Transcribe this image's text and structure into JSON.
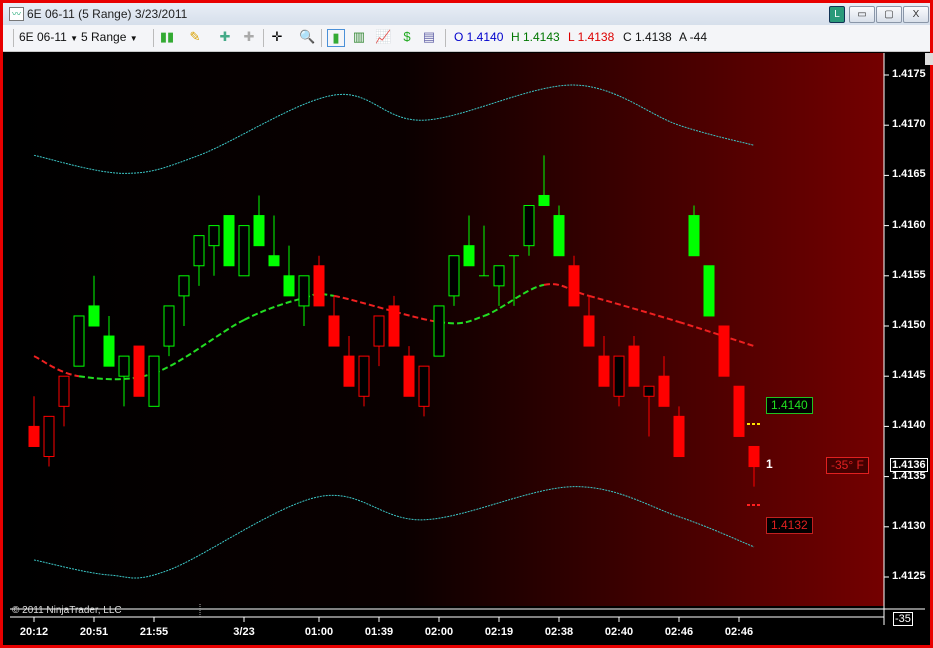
{
  "window": {
    "title": "6E 06-11 (5 Range)  3/23/2011",
    "btn_link": "L",
    "btn_min": "▭",
    "btn_max": "▢",
    "btn_close": "X"
  },
  "toolbar": {
    "instrument": "6E 06-11",
    "period": "5 Range",
    "ohlc": {
      "open": "O 1.4140",
      "high": "H 1.4143",
      "low": "L 1.4138",
      "close": "C 1.4138",
      "avg": "A -44"
    },
    "colors": {
      "open": "#0000cc",
      "high": "#007700",
      "low": "#dd0000",
      "close": "#111111"
    }
  },
  "chart": {
    "copyright": "© 2011 NinjaTrader, LLC",
    "background_colors": [
      "#000000",
      "#740000"
    ],
    "up_color": "#00ff00",
    "down_color": "#ff0000",
    "band_color": "#3cc8c8",
    "price_labels": [
      "1.4175",
      "1.4170",
      "1.4165",
      "1.4160",
      "1.4155",
      "1.4150",
      "1.4145",
      "1.4140",
      "1.4135",
      "1.4130",
      "1.4125"
    ],
    "current_price": "1.4136",
    "indicator_value": "-35",
    "angle_label": "-35°  F",
    "target_label": "1.4140",
    "stop_label": "1.4132",
    "bar_count_label": "1",
    "time_labels": [
      {
        "bar": 0,
        "label": "20:12"
      },
      {
        "bar": 4,
        "label": "20:51"
      },
      {
        "bar": 8,
        "label": "21:55"
      },
      {
        "bar": 14,
        "label": "3/23"
      },
      {
        "bar": 19,
        "label": "01:00"
      },
      {
        "bar": 23,
        "label": "01:39"
      },
      {
        "bar": 27,
        "label": "02:00"
      },
      {
        "bar": 31,
        "label": "02:19"
      },
      {
        "bar": 35,
        "label": "02:38"
      },
      {
        "bar": 39,
        "label": "02:40"
      },
      {
        "bar": 43,
        "label": "02:46"
      },
      {
        "bar": 47,
        "label": "02:46"
      }
    ],
    "candles": [
      [
        1.414,
        1.4143,
        1.4138,
        1.4138,
        "r",
        0
      ],
      [
        1.4137,
        1.4141,
        1.4136,
        1.4141,
        "r",
        1
      ],
      [
        1.4142,
        1.4145,
        1.414,
        1.4145,
        "r",
        1
      ],
      [
        1.4146,
        1.4151,
        1.4146,
        1.4151,
        "g",
        1
      ],
      [
        1.415,
        1.4155,
        1.415,
        1.4152,
        "g",
        0
      ],
      [
        1.4146,
        1.4151,
        1.4146,
        1.4149,
        "g",
        0
      ],
      [
        1.4145,
        1.4147,
        1.4142,
        1.4147,
        "g",
        1
      ],
      [
        1.4148,
        1.4148,
        1.4143,
        1.4143,
        "r",
        0
      ],
      [
        1.4142,
        1.4147,
        1.4142,
        1.4147,
        "g",
        1
      ],
      [
        1.4148,
        1.4152,
        1.4147,
        1.4152,
        "g",
        1
      ],
      [
        1.4153,
        1.4155,
        1.415,
        1.4155,
        "g",
        1
      ],
      [
        1.4156,
        1.4159,
        1.4154,
        1.4159,
        "g",
        1
      ],
      [
        1.4158,
        1.416,
        1.4155,
        1.416,
        "g",
        1
      ],
      [
        1.4156,
        1.4161,
        1.4156,
        1.4161,
        "g",
        0
      ],
      [
        1.4155,
        1.416,
        1.4155,
        1.416,
        "g",
        1
      ],
      [
        1.4158,
        1.4163,
        1.4158,
        1.4161,
        "g",
        0
      ],
      [
        1.4156,
        1.4161,
        1.4156,
        1.4157,
        "g",
        0
      ],
      [
        1.4153,
        1.4158,
        1.4153,
        1.4155,
        "g",
        0
      ],
      [
        1.4152,
        1.4155,
        1.415,
        1.4155,
        "g",
        1
      ],
      [
        1.4156,
        1.4157,
        1.4152,
        1.4152,
        "r",
        0
      ],
      [
        1.4151,
        1.4153,
        1.4148,
        1.4148,
        "r",
        0
      ],
      [
        1.4147,
        1.4149,
        1.4144,
        1.4144,
        "r",
        0
      ],
      [
        1.4143,
        1.4147,
        1.4142,
        1.4147,
        "r",
        1
      ],
      [
        1.4148,
        1.4151,
        1.4146,
        1.4151,
        "r",
        1
      ],
      [
        1.4152,
        1.4153,
        1.4148,
        1.4148,
        "r",
        0
      ],
      [
        1.4147,
        1.4148,
        1.4143,
        1.4143,
        "r",
        0
      ],
      [
        1.4142,
        1.4146,
        1.4141,
        1.4146,
        "r",
        1
      ],
      [
        1.4147,
        1.4152,
        1.4147,
        1.4152,
        "g",
        1
      ],
      [
        1.4153,
        1.4157,
        1.4152,
        1.4157,
        "g",
        1
      ],
      [
        1.4156,
        1.4161,
        1.4156,
        1.4158,
        "g",
        0
      ],
      [
        1.4155,
        1.416,
        1.4155,
        1.4155,
        "g",
        1
      ],
      [
        1.4154,
        1.4156,
        1.4152,
        1.4156,
        "g",
        1
      ],
      [
        1.4157,
        1.4157,
        1.4152,
        1.4157,
        "g",
        1
      ],
      [
        1.4158,
        1.4162,
        1.4157,
        1.4162,
        "g",
        1
      ],
      [
        1.4162,
        1.4167,
        1.4162,
        1.4163,
        "g",
        0
      ],
      [
        1.4157,
        1.4162,
        1.4157,
        1.4161,
        "g",
        0
      ],
      [
        1.4156,
        1.4157,
        1.4152,
        1.4152,
        "r",
        0
      ],
      [
        1.4151,
        1.4153,
        1.4148,
        1.4148,
        "r",
        0
      ],
      [
        1.4147,
        1.4149,
        1.4144,
        1.4144,
        "r",
        0
      ],
      [
        1.4143,
        1.4147,
        1.4142,
        1.4147,
        "r",
        1
      ],
      [
        1.4148,
        1.4149,
        1.4144,
        1.4144,
        "r",
        0
      ],
      [
        1.4143,
        1.4144,
        1.4139,
        1.4144,
        "r",
        1
      ],
      [
        1.4145,
        1.4147,
        1.4142,
        1.4142,
        "r",
        0
      ],
      [
        1.4141,
        1.4142,
        1.4137,
        1.4137,
        "r",
        0
      ],
      [
        1.4157,
        1.4162,
        1.4157,
        1.4161,
        "g",
        0
      ],
      [
        1.4156,
        1.4156,
        1.4151,
        1.4151,
        "g",
        0
      ],
      [
        1.415,
        1.415,
        1.4145,
        1.4145,
        "r",
        0
      ],
      [
        1.4144,
        1.4144,
        1.4139,
        1.4139,
        "r",
        0
      ],
      [
        1.4138,
        1.4138,
        1.4134,
        1.4136,
        "r",
        0
      ]
    ],
    "ma": [
      [
        0,
        1.4147
      ],
      [
        3,
        1.4145
      ],
      [
        8,
        1.41453
      ],
      [
        14,
        1.41506
      ],
      [
        18,
        1.41528
      ],
      [
        20,
        1.4153
      ],
      [
        27,
        1.41504
      ],
      [
        30,
        1.4151
      ],
      [
        34,
        1.41541
      ],
      [
        37,
        1.4153
      ],
      [
        43,
        1.41504
      ],
      [
        48,
        1.4148
      ]
    ],
    "upper_band": [
      [
        0,
        1.4167
      ],
      [
        6,
        1.41652
      ],
      [
        11,
        1.4167
      ],
      [
        20,
        1.4173
      ],
      [
        26,
        1.41705
      ],
      [
        36,
        1.4174
      ],
      [
        43,
        1.417
      ],
      [
        48,
        1.4168
      ]
    ],
    "lower_band": [
      [
        0,
        1.41267
      ],
      [
        5,
        1.41252
      ],
      [
        9,
        1.41257
      ],
      [
        19,
        1.4133
      ],
      [
        26,
        1.41307
      ],
      [
        36,
        1.4134
      ],
      [
        43,
        1.4131
      ],
      [
        48,
        1.4128
      ]
    ]
  }
}
